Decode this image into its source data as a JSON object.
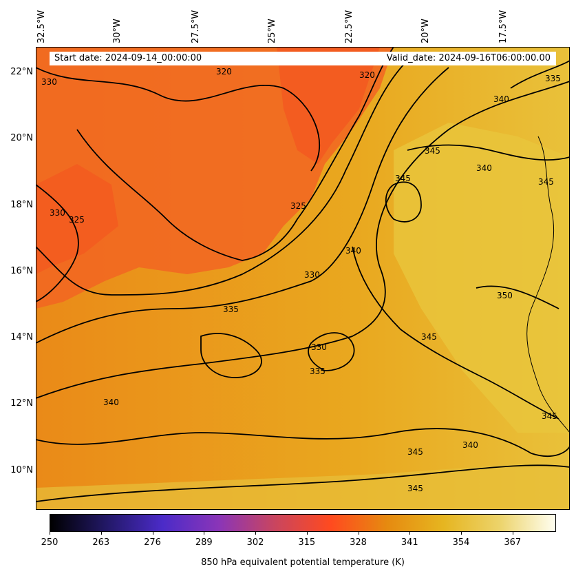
{
  "map": {
    "start_date": "Start date: 2024-09-14_00:00:00",
    "valid_date": "Valid_date: 2024-09-16T06:00:00.00",
    "lon_labels": [
      "32.5°W",
      "30°W",
      "27.5°W",
      "25°W",
      "22.5°W",
      "20°W",
      "17.5°W"
    ],
    "lat_labels": [
      "22°N",
      "20°N",
      "18°N",
      "16°N",
      "14°N",
      "12°N",
      "10°N"
    ],
    "contour_labels": [
      "330",
      "320",
      "320",
      "340",
      "335",
      "345",
      "340",
      "345",
      "330",
      "325",
      "325",
      "345",
      "340",
      "330",
      "335",
      "350",
      "345",
      "330",
      "335",
      "340",
      "345",
      "340",
      "345",
      "345"
    ],
    "colors": {
      "low": "#f26522",
      "mid": "#e8a317",
      "high": "#e8c53a",
      "line": "#000000"
    }
  },
  "colorbar": {
    "ticks": [
      "250",
      "263",
      "276",
      "289",
      "302",
      "315",
      "328",
      "341",
      "354",
      "367"
    ],
    "title": "850 hPa equivalent potential temperature (K)",
    "colors": [
      "#000000",
      "#221866",
      "#4b2bc8",
      "#8a35b8",
      "#c9455f",
      "#ff4a1f",
      "#e68a10",
      "#e6b520",
      "#ecd36a",
      "#fffef0"
    ]
  }
}
